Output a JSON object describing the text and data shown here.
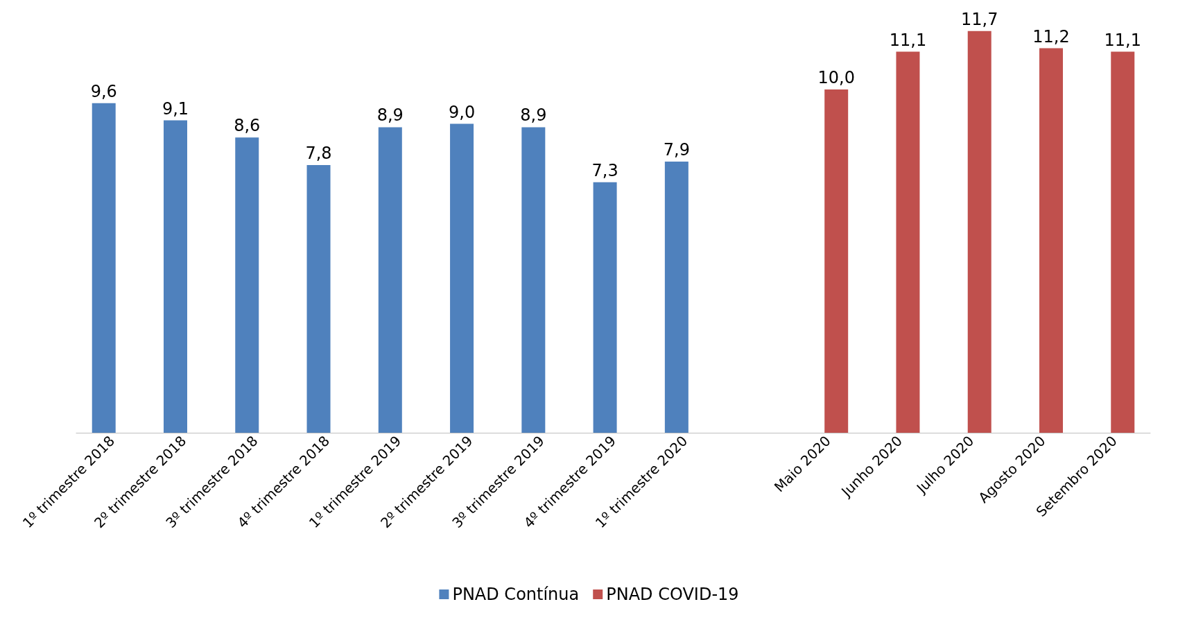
{
  "chart_data": {
    "type": "bar",
    "categories": [
      "1º trimestre 2018",
      "2º trimestre 2018",
      "3º trimestre 2018",
      "4º trimestre 2018",
      "1º trimestre 2019",
      "2º trimestre 2019",
      "3º trimestre 2019",
      "4º trimestre 2019",
      "1º trimestre 2020",
      null,
      "Maio 2020",
      "Junho 2020",
      "Julho 2020",
      "Agosto 2020",
      "Setembro 2020"
    ],
    "series": [
      {
        "name": "PNAD Contínua",
        "color": "#4f81bd",
        "values": [
          9.6,
          9.1,
          8.6,
          7.8,
          8.9,
          9.0,
          8.9,
          7.3,
          7.9,
          null,
          null,
          null,
          null,
          null,
          null
        ],
        "value_labels": [
          "9,6",
          "9,1",
          "8,6",
          "7,8",
          "8,9",
          "9,0",
          "8,9",
          "7,3",
          "7,9",
          null,
          null,
          null,
          null,
          null,
          null
        ]
      },
      {
        "name": "PNAD COVID-19",
        "color": "#c0504d",
        "values": [
          null,
          null,
          null,
          null,
          null,
          null,
          null,
          null,
          null,
          null,
          10.0,
          11.1,
          11.7,
          11.2,
          11.1
        ],
        "value_labels": [
          null,
          null,
          null,
          null,
          null,
          null,
          null,
          null,
          null,
          null,
          "10,0",
          "11,1",
          "11,7",
          "11,2",
          "11,1"
        ]
      }
    ],
    "legend": "bottom",
    "grid": false
  }
}
